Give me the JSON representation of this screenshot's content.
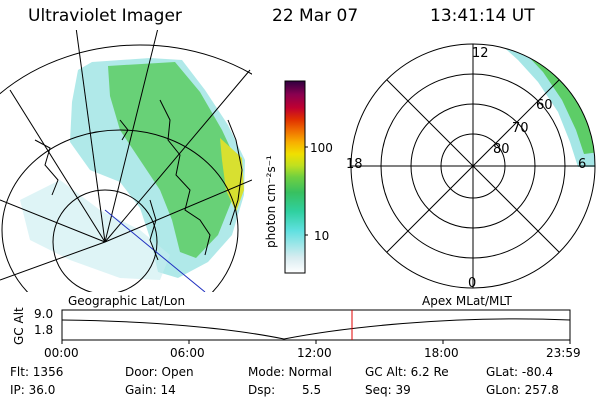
{
  "header": {
    "instrument": "Ultraviolet Imager",
    "date": "22 Mar 07",
    "time": "13:41:14 UT"
  },
  "colorbar": {
    "unit_label": "photon cm⁻²s⁻¹",
    "ticks": [
      "100",
      "10"
    ],
    "colors": [
      "#ffffff",
      "#d8ecf0",
      "#60e0e0",
      "#30d0a0",
      "#38c060",
      "#70d040",
      "#c0e020",
      "#f0e000",
      "#f8b000",
      "#f07000",
      "#e03000",
      "#c00030",
      "#8a0050",
      "#300040"
    ]
  },
  "left_panel": {
    "label": "Geographic Lat/Lon"
  },
  "right_panel": {
    "label": "Apex MLat/MLT",
    "mlt_labels": {
      "top": "12",
      "left": "18",
      "right": "6",
      "bottom": "0"
    },
    "lat_labels": [
      "60",
      "70",
      "80"
    ]
  },
  "timeline": {
    "ylabel": "GC Alt",
    "ytick_top": "9.0",
    "ytick_bottom": "1.8",
    "xticks": [
      "00:00",
      "06:00",
      "12:00",
      "18:00",
      "23:59"
    ],
    "marker_time": "13:41",
    "marker_color": "#e00000"
  },
  "info": {
    "flt": "Flt: 1356",
    "ip": "IP: 36.0",
    "door": "Door: Open",
    "gain": "Gain: 14",
    "mode": "Mode: Normal",
    "dsp_label": "Dsp:",
    "dsp_value": "5.5",
    "gc_alt": "GC Alt: 6.2 Re",
    "seq": "Seq: 39",
    "glat": "GLat: -80.4",
    "glon": "GLon: 257.8"
  }
}
